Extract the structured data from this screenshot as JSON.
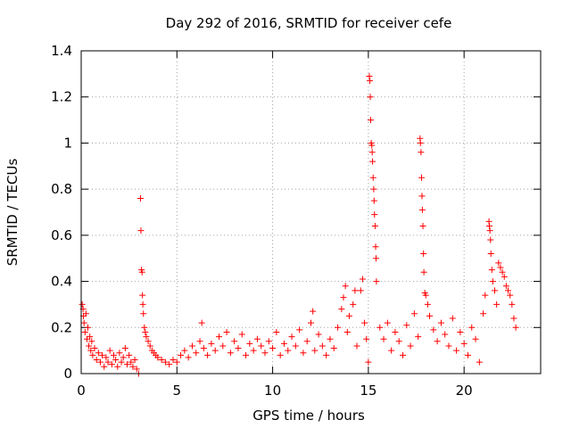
{
  "chart_data": {
    "type": "scatter",
    "title": "Day 292 of 2016, SRMTID for receiver cefe",
    "xlabel": "GPS time / hours",
    "ylabel": "SRMTID / TECUs",
    "xlim": [
      0,
      24
    ],
    "ylim": [
      0,
      1.4
    ],
    "xticks": [
      0,
      5,
      10,
      15,
      20
    ],
    "xtick_labels": [
      "0",
      "5",
      "10",
      "15",
      "20"
    ],
    "yticks": [
      0,
      0.2,
      0.4,
      0.6,
      0.8,
      1.0,
      1.2,
      1.4
    ],
    "ytick_labels": [
      "0",
      "0.2",
      "0.4",
      "0.6",
      "0.8",
      "1",
      "1.2",
      "1.4"
    ],
    "grid": true,
    "marker": "+",
    "color": "#ff0000",
    "series": [
      {
        "name": "SRMTID",
        "points": [
          [
            0.05,
            0.3
          ],
          [
            0.1,
            0.28
          ],
          [
            0.12,
            0.25
          ],
          [
            0.15,
            0.22
          ],
          [
            0.2,
            0.18
          ],
          [
            0.25,
            0.26
          ],
          [
            0.3,
            0.15
          ],
          [
            0.35,
            0.2
          ],
          [
            0.4,
            0.12
          ],
          [
            0.45,
            0.16
          ],
          [
            0.5,
            0.1
          ],
          [
            0.55,
            0.14
          ],
          [
            0.6,
            0.08
          ],
          [
            0.7,
            0.11
          ],
          [
            0.8,
            0.06
          ],
          [
            0.9,
            0.09
          ],
          [
            1.0,
            0.05
          ],
          [
            1.1,
            0.08
          ],
          [
            1.2,
            0.03
          ],
          [
            1.3,
            0.07
          ],
          [
            1.4,
            0.05
          ],
          [
            1.5,
            0.1
          ],
          [
            1.6,
            0.04
          ],
          [
            1.7,
            0.08
          ],
          [
            1.8,
            0.06
          ],
          [
            1.9,
            0.03
          ],
          [
            2.0,
            0.09
          ],
          [
            2.1,
            0.05
          ],
          [
            2.2,
            0.07
          ],
          [
            2.3,
            0.11
          ],
          [
            2.4,
            0.04
          ],
          [
            2.5,
            0.08
          ],
          [
            2.6,
            0.05
          ],
          [
            2.7,
            0.03
          ],
          [
            2.8,
            0.06
          ],
          [
            2.9,
            0.02
          ],
          [
            3.0,
            0.0
          ],
          [
            3.1,
            0.76
          ],
          [
            3.12,
            0.62
          ],
          [
            3.15,
            0.45
          ],
          [
            3.18,
            0.44
          ],
          [
            3.2,
            0.34
          ],
          [
            3.22,
            0.3
          ],
          [
            3.25,
            0.26
          ],
          [
            3.3,
            0.2
          ],
          [
            3.35,
            0.18
          ],
          [
            3.4,
            0.16
          ],
          [
            3.5,
            0.14
          ],
          [
            3.6,
            0.12
          ],
          [
            3.7,
            0.1
          ],
          [
            3.8,
            0.09
          ],
          [
            3.9,
            0.08
          ],
          [
            4.0,
            0.07
          ],
          [
            4.2,
            0.06
          ],
          [
            4.4,
            0.05
          ],
          [
            4.6,
            0.04
          ],
          [
            4.8,
            0.06
          ],
          [
            5.0,
            0.05
          ],
          [
            5.2,
            0.08
          ],
          [
            5.4,
            0.1
          ],
          [
            5.6,
            0.07
          ],
          [
            5.8,
            0.12
          ],
          [
            6.0,
            0.09
          ],
          [
            6.2,
            0.14
          ],
          [
            6.3,
            0.22
          ],
          [
            6.4,
            0.11
          ],
          [
            6.6,
            0.08
          ],
          [
            6.8,
            0.13
          ],
          [
            7.0,
            0.1
          ],
          [
            7.2,
            0.16
          ],
          [
            7.4,
            0.12
          ],
          [
            7.6,
            0.18
          ],
          [
            7.8,
            0.09
          ],
          [
            8.0,
            0.14
          ],
          [
            8.2,
            0.11
          ],
          [
            8.4,
            0.17
          ],
          [
            8.6,
            0.08
          ],
          [
            8.8,
            0.13
          ],
          [
            9.0,
            0.1
          ],
          [
            9.2,
            0.15
          ],
          [
            9.4,
            0.12
          ],
          [
            9.6,
            0.09
          ],
          [
            9.8,
            0.14
          ],
          [
            10.0,
            0.11
          ],
          [
            10.2,
            0.18
          ],
          [
            10.4,
            0.08
          ],
          [
            10.6,
            0.13
          ],
          [
            10.8,
            0.1
          ],
          [
            11.0,
            0.16
          ],
          [
            11.2,
            0.12
          ],
          [
            11.4,
            0.19
          ],
          [
            11.6,
            0.09
          ],
          [
            11.8,
            0.14
          ],
          [
            12.0,
            0.22
          ],
          [
            12.1,
            0.27
          ],
          [
            12.2,
            0.1
          ],
          [
            12.4,
            0.17
          ],
          [
            12.6,
            0.12
          ],
          [
            12.8,
            0.08
          ],
          [
            13.0,
            0.15
          ],
          [
            13.2,
            0.11
          ],
          [
            13.4,
            0.2
          ],
          [
            13.6,
            0.28
          ],
          [
            13.7,
            0.33
          ],
          [
            13.8,
            0.38
          ],
          [
            13.9,
            0.18
          ],
          [
            14.0,
            0.25
          ],
          [
            14.2,
            0.3
          ],
          [
            14.3,
            0.36
          ],
          [
            14.4,
            0.12
          ],
          [
            14.6,
            0.36
          ],
          [
            14.7,
            0.41
          ],
          [
            14.8,
            0.22
          ],
          [
            14.9,
            0.15
          ],
          [
            15.0,
            0.05
          ],
          [
            15.05,
            1.29
          ],
          [
            15.08,
            1.27
          ],
          [
            15.1,
            1.2
          ],
          [
            15.12,
            1.1
          ],
          [
            15.15,
            1.0
          ],
          [
            15.18,
            0.99
          ],
          [
            15.2,
            0.96
          ],
          [
            15.22,
            0.92
          ],
          [
            15.25,
            0.85
          ],
          [
            15.28,
            0.8
          ],
          [
            15.3,
            0.75
          ],
          [
            15.32,
            0.69
          ],
          [
            15.35,
            0.64
          ],
          [
            15.38,
            0.55
          ],
          [
            15.4,
            0.5
          ],
          [
            15.42,
            0.4
          ],
          [
            15.6,
            0.2
          ],
          [
            15.8,
            0.15
          ],
          [
            16.0,
            0.22
          ],
          [
            16.2,
            0.1
          ],
          [
            16.4,
            0.18
          ],
          [
            16.6,
            0.14
          ],
          [
            16.8,
            0.08
          ],
          [
            17.0,
            0.21
          ],
          [
            17.2,
            0.12
          ],
          [
            17.4,
            0.26
          ],
          [
            17.6,
            0.16
          ],
          [
            17.7,
            1.02
          ],
          [
            17.72,
            1.0
          ],
          [
            17.75,
            0.96
          ],
          [
            17.78,
            0.85
          ],
          [
            17.8,
            0.77
          ],
          [
            17.82,
            0.71
          ],
          [
            17.85,
            0.64
          ],
          [
            17.88,
            0.52
          ],
          [
            17.9,
            0.44
          ],
          [
            17.95,
            0.35
          ],
          [
            18.0,
            0.34
          ],
          [
            18.1,
            0.3
          ],
          [
            18.2,
            0.25
          ],
          [
            18.4,
            0.19
          ],
          [
            18.6,
            0.14
          ],
          [
            18.8,
            0.22
          ],
          [
            19.0,
            0.17
          ],
          [
            19.2,
            0.12
          ],
          [
            19.4,
            0.24
          ],
          [
            19.6,
            0.1
          ],
          [
            19.8,
            0.18
          ],
          [
            20.0,
            0.13
          ],
          [
            20.2,
            0.08
          ],
          [
            20.4,
            0.2
          ],
          [
            20.6,
            0.15
          ],
          [
            20.8,
            0.05
          ],
          [
            21.0,
            0.26
          ],
          [
            21.1,
            0.34
          ],
          [
            21.3,
            0.66
          ],
          [
            21.32,
            0.64
          ],
          [
            21.35,
            0.62
          ],
          [
            21.38,
            0.58
          ],
          [
            21.4,
            0.52
          ],
          [
            21.45,
            0.45
          ],
          [
            21.5,
            0.4
          ],
          [
            21.6,
            0.36
          ],
          [
            21.7,
            0.3
          ],
          [
            21.8,
            0.48
          ],
          [
            21.9,
            0.46
          ],
          [
            22.0,
            0.44
          ],
          [
            22.1,
            0.42
          ],
          [
            22.2,
            0.38
          ],
          [
            22.3,
            0.36
          ],
          [
            22.4,
            0.34
          ],
          [
            22.5,
            0.3
          ],
          [
            22.6,
            0.24
          ],
          [
            22.7,
            0.2
          ]
        ]
      }
    ]
  }
}
